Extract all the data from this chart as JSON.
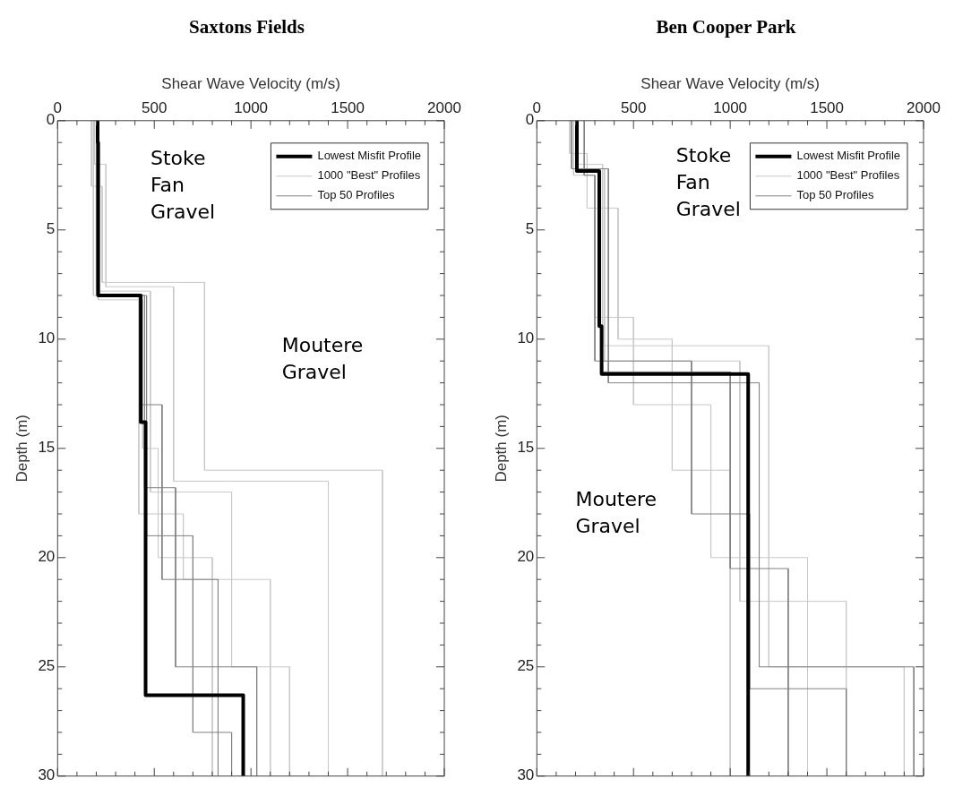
{
  "chart_data": [
    {
      "type": "line",
      "title": "Saxtons Fields",
      "xlabel": "Shear Wave Velocity (m/s)",
      "ylabel": "Depth (m)",
      "xlim": [
        0,
        2000
      ],
      "ylim": [
        30,
        0
      ],
      "xticks": [
        0,
        {
          "value": 100,
          "label": null
        },
        {
          "value": 200,
          "label": null
        },
        {
          "value": 300,
          "label": null
        },
        {
          "value": 400,
          "label": null
        },
        500,
        {
          "value": 600,
          "label": null
        },
        {
          "value": 700,
          "label": null
        },
        {
          "value": 800,
          "label": null
        },
        {
          "value": 900,
          "label": null
        },
        1000,
        {
          "value": 1100,
          "label": null
        },
        {
          "value": 1200,
          "label": null
        },
        {
          "value": 1300,
          "label": null
        },
        {
          "value": 1400,
          "label": null
        },
        1500,
        {
          "value": 1600,
          "label": null
        },
        {
          "value": 1700,
          "label": null
        },
        {
          "value": 1800,
          "label": null
        },
        {
          "value": 1900,
          "label": null
        },
        2000
      ],
      "yticks": [
        0,
        {
          "value": 1,
          "label": null
        },
        {
          "value": 2,
          "label": null
        },
        {
          "value": 3,
          "label": null
        },
        {
          "value": 4,
          "label": null
        },
        5,
        {
          "value": 6,
          "label": null
        },
        {
          "value": 7,
          "label": null
        },
        {
          "value": 8,
          "label": null
        },
        {
          "value": 9,
          "label": null
        },
        10,
        {
          "value": 11,
          "label": null
        },
        {
          "value": 12,
          "label": null
        },
        {
          "value": 13,
          "label": null
        },
        {
          "value": 14,
          "label": null
        },
        15,
        {
          "value": 16,
          "label": null
        },
        {
          "value": 17,
          "label": null
        },
        {
          "value": 18,
          "label": null
        },
        {
          "value": 19,
          "label": null
        },
        20,
        {
          "value": 21,
          "label": null
        },
        {
          "value": 22,
          "label": null
        },
        {
          "value": 23,
          "label": null
        },
        {
          "value": 24,
          "label": null
        },
        25,
        {
          "value": 26,
          "label": null
        },
        {
          "value": 27,
          "label": null
        },
        {
          "value": 28,
          "label": null
        },
        {
          "value": 29,
          "label": null
        },
        30
      ],
      "grid": false,
      "legend": "top right",
      "marker": "none",
      "line_style": "solid",
      "annotations": [
        "Stoke Fan Gravel",
        "Moutere Gravel"
      ],
      "series": [
        {
          "name": "Lowest Misfit Profile",
          "color": "#000000",
          "x": [
            207,
            207,
            210,
            210,
            430,
            430,
            455,
            455,
            960,
            960
          ],
          "values": [
            0,
            1,
            1,
            8,
            8,
            13.8,
            13.8,
            26.3,
            26.3,
            30
          ]
        },
        {
          "name": "1000 \"Best\" Profiles",
          "color": "#c8c8c8",
          "x": [
            175,
            175,
            230,
            230,
            760,
            760,
            1680,
            1680
          ],
          "values": [
            0,
            3,
            3,
            7.4,
            7.4,
            16,
            16,
            30
          ]
        },
        {
          "name": "Top 50 Profiles",
          "color": "#808080",
          "x": [
            205,
            205,
            450,
            450,
            610,
            610,
            1030,
            1030
          ],
          "values": [
            0,
            8,
            8,
            16.8,
            16.8,
            25,
            25,
            30
          ]
        },
        {
          "color": "#c8c8c8",
          "x": [
            190,
            190,
            250,
            250,
            600,
            600,
            1400,
            1400
          ],
          "values": [
            0,
            2,
            2,
            7.6,
            7.6,
            16.5,
            16.5,
            30
          ]
        },
        {
          "color": "#c8c8c8",
          "x": [
            200,
            200,
            480,
            480,
            900,
            900,
            1200,
            1200
          ],
          "values": [
            0,
            7.8,
            7.8,
            17,
            17,
            25,
            25,
            30
          ]
        },
        {
          "color": "#c8c8c8",
          "x": [
            185,
            185,
            420,
            420,
            650,
            650,
            1100,
            1100
          ],
          "values": [
            0,
            8,
            8,
            18,
            18,
            21,
            21,
            30
          ]
        },
        {
          "color": "#c8c8c8",
          "x": [
            210,
            210,
            440,
            440,
            520,
            520,
            800,
            800
          ],
          "values": [
            0,
            8.2,
            8.2,
            15,
            15,
            20,
            20,
            30
          ]
        },
        {
          "color": "#808080",
          "x": [
            210,
            210,
            430,
            430,
            540,
            540,
            830,
            830
          ],
          "values": [
            0,
            8,
            8,
            13,
            13,
            21,
            21,
            30
          ]
        },
        {
          "color": "#808080",
          "x": [
            200,
            200,
            460,
            460,
            700,
            700,
            900,
            900
          ],
          "values": [
            0,
            8,
            8,
            19,
            19,
            28,
            28,
            30
          ]
        }
      ]
    },
    {
      "type": "line",
      "title": "Ben Cooper Park",
      "xlabel": "Shear Wave Velocity (m/s)",
      "ylabel": "Depth (m)",
      "xlim": [
        0,
        2000
      ],
      "ylim": [
        30,
        0
      ],
      "xticks": [
        0,
        {
          "value": 100,
          "label": null
        },
        {
          "value": 200,
          "label": null
        },
        {
          "value": 300,
          "label": null
        },
        {
          "value": 400,
          "label": null
        },
        500,
        {
          "value": 600,
          "label": null
        },
        {
          "value": 700,
          "label": null
        },
        {
          "value": 800,
          "label": null
        },
        {
          "value": 900,
          "label": null
        },
        1000,
        {
          "value": 1100,
          "label": null
        },
        {
          "value": 1200,
          "label": null
        },
        {
          "value": 1300,
          "label": null
        },
        {
          "value": 1400,
          "label": null
        },
        1500,
        {
          "value": 1600,
          "label": null
        },
        {
          "value": 1700,
          "label": null
        },
        {
          "value": 1800,
          "label": null
        },
        {
          "value": 1900,
          "label": null
        },
        2000
      ],
      "yticks": [
        0,
        {
          "value": 1,
          "label": null
        },
        {
          "value": 2,
          "label": null
        },
        {
          "value": 3,
          "label": null
        },
        {
          "value": 4,
          "label": null
        },
        5,
        {
          "value": 6,
          "label": null
        },
        {
          "value": 7,
          "label": null
        },
        {
          "value": 8,
          "label": null
        },
        {
          "value": 9,
          "label": null
        },
        10,
        {
          "value": 11,
          "label": null
        },
        {
          "value": 12,
          "label": null
        },
        {
          "value": 13,
          "label": null
        },
        {
          "value": 14,
          "label": null
        },
        15,
        {
          "value": 16,
          "label": null
        },
        {
          "value": 17,
          "label": null
        },
        {
          "value": 18,
          "label": null
        },
        {
          "value": 19,
          "label": null
        },
        20,
        {
          "value": 21,
          "label": null
        },
        {
          "value": 22,
          "label": null
        },
        {
          "value": 23,
          "label": null
        },
        {
          "value": 24,
          "label": null
        },
        25,
        {
          "value": 26,
          "label": null
        },
        {
          "value": 27,
          "label": null
        },
        {
          "value": 28,
          "label": null
        },
        {
          "value": 29,
          "label": null
        },
        30
      ],
      "grid": false,
      "legend": "top right",
      "marker": "none",
      "line_style": "solid",
      "annotations": [
        "Stoke Fan Gravel",
        "Moutere Gravel"
      ],
      "series": [
        {
          "name": "Lowest Misfit Profile",
          "color": "#000000",
          "x": [
            207,
            207,
            323,
            323,
            335,
            335,
            1093,
            1093
          ],
          "values": [
            0,
            2.3,
            2.3,
            9.4,
            9.4,
            11.6,
            11.6,
            30
          ]
        },
        {
          "name": "1000 \"Best\" Profiles",
          "color": "#c8c8c8",
          "x": [
            170,
            170,
            260,
            260,
            420,
            420,
            700,
            700,
            1000,
            1000
          ],
          "values": [
            0,
            1.5,
            1.5,
            4,
            4,
            10,
            10,
            16,
            16,
            30
          ]
        },
        {
          "name": "Top 50 Profiles",
          "color": "#808080",
          "x": [
            205,
            205,
            330,
            330,
            1000,
            1000,
            1300,
            1300
          ],
          "values": [
            0,
            2.3,
            2.3,
            11.5,
            11.5,
            20.5,
            20.5,
            30
          ]
        },
        {
          "color": "#c8c8c8",
          "x": [
            210,
            210,
            340,
            340,
            1200,
            1200,
            1900,
            1900
          ],
          "values": [
            0,
            2,
            2,
            10.3,
            10.3,
            25,
            25,
            30
          ]
        },
        {
          "color": "#c8c8c8",
          "x": [
            190,
            190,
            300,
            300,
            500,
            500,
            900,
            900,
            1400,
            1400
          ],
          "values": [
            0,
            2.5,
            2.5,
            9,
            9,
            13,
            13,
            20,
            20,
            30
          ]
        },
        {
          "color": "#c8c8c8",
          "x": [
            200,
            200,
            350,
            350,
            1050,
            1050,
            1600,
            1600
          ],
          "values": [
            0,
            2.2,
            2.2,
            11,
            11,
            22,
            22,
            30
          ]
        },
        {
          "color": "#808080",
          "x": [
            245,
            245,
            300,
            300,
            800,
            800,
            1100,
            1100,
            1600,
            1600
          ],
          "values": [
            0,
            2.5,
            2.5,
            11,
            11,
            18,
            18,
            26,
            26,
            30
          ]
        },
        {
          "color": "#808080",
          "x": [
            180,
            180,
            370,
            370,
            1150,
            1150,
            1950,
            1950
          ],
          "values": [
            0,
            2.2,
            2.2,
            12,
            12,
            25,
            25,
            30
          ]
        }
      ]
    }
  ]
}
